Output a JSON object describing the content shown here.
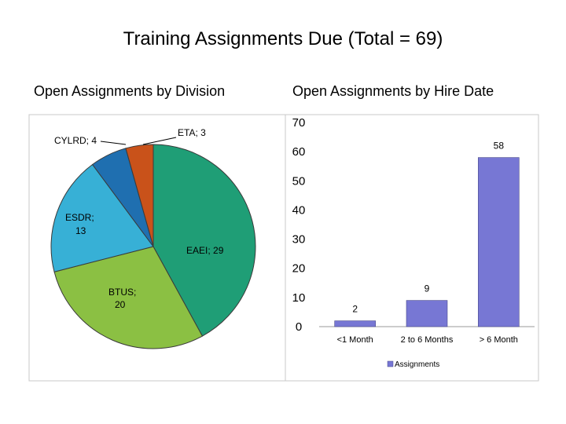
{
  "title": "Training Assignments Due (Total = 69)",
  "colors": {
    "eaei": "#1f9e76",
    "btus": "#8bc043",
    "esdr": "#37b0d6",
    "cylrd": "#1f6fb0",
    "eta": "#c9521a",
    "bar": "#7777d4"
  },
  "chart_data": [
    {
      "type": "pie",
      "title": "Open Assignments by Division",
      "slices": [
        {
          "label": "EAEI",
          "value": 29,
          "text": "EAEI; 29",
          "color": "#1f9e76"
        },
        {
          "label": "BTUS",
          "value": 20,
          "text": "BTUS; 20",
          "color": "#8bc043"
        },
        {
          "label": "ESDR",
          "value": 13,
          "text": "ESDR; 13",
          "color": "#37b0d6"
        },
        {
          "label": "CYLRD",
          "value": 4,
          "text": "CYLRD; 4",
          "color": "#1f6fb0"
        },
        {
          "label": "ETA",
          "value": 3,
          "text": "ETA; 3",
          "color": "#c9521a"
        }
      ]
    },
    {
      "type": "bar",
      "title": "Open Assignments by Hire Date",
      "categories": [
        "<1 Month",
        "2 to 6 Months",
        "> 6 Month"
      ],
      "series": [
        {
          "name": "Assignments",
          "values": [
            2,
            9,
            58
          ]
        }
      ],
      "ylim": [
        0,
        70
      ],
      "yticks": [
        0,
        10,
        20,
        30,
        40,
        50,
        60,
        70
      ],
      "legend": "bottom",
      "grid": false
    }
  ]
}
